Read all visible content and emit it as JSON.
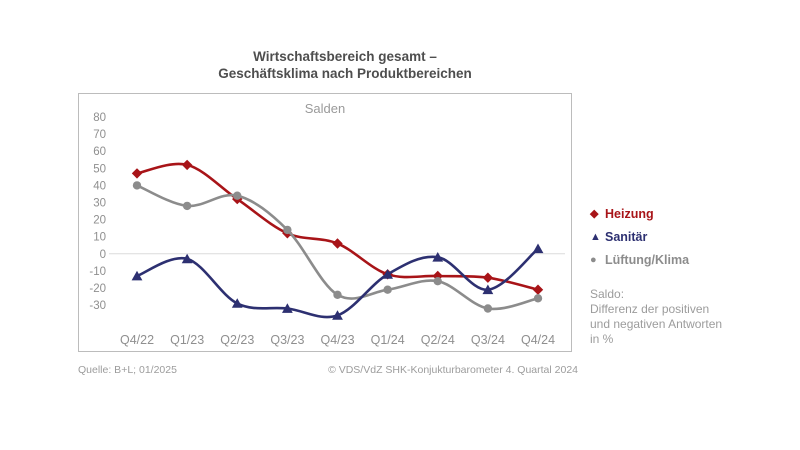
{
  "title": {
    "line1": "Wirtschaftsbereich gesamt –",
    "line2": "Geschäftsklima nach Produktbereichen"
  },
  "chart_data": {
    "type": "line",
    "title": "Salden",
    "categories": [
      "Q4/22",
      "Q1/23",
      "Q2/23",
      "Q3/23",
      "Q4/23",
      "Q1/24",
      "Q2/24",
      "Q3/24",
      "Q4/24"
    ],
    "series": [
      {
        "name": "Heizung",
        "color": "#a81418",
        "marker": "diamond",
        "values": [
          47,
          52,
          32,
          12,
          6,
          -12,
          -13,
          -14,
          -21
        ]
      },
      {
        "name": "Sanitär",
        "color": "#2d3071",
        "marker": "triangle",
        "values": [
          -13,
          -3,
          -29,
          -32,
          -36,
          -12,
          -2,
          -21,
          3
        ]
      },
      {
        "name": "Lüftung/Klima",
        "color": "#8c8c8c",
        "marker": "circle",
        "values": [
          40,
          28,
          34,
          14,
          -24,
          -21,
          -16,
          -32,
          -26
        ]
      }
    ],
    "y_ticks": [
      80,
      70,
      60,
      50,
      40,
      30,
      20,
      10,
      0,
      -10,
      -20,
      -30
    ],
    "ylim": [
      -45,
      90
    ],
    "grid": "zero-line-only",
    "legend_position": "right-outside",
    "smoothed_lines": true
  },
  "note": {
    "lines": [
      "Saldo:",
      "Differenz der positiven",
      "und negativen Antworten",
      "in %"
    ]
  },
  "footer": {
    "left": "Quelle: B+L; 01/2025",
    "right": "© VDS/VdZ SHK-Konjukturbarometer 4. Quartal 2024"
  },
  "colors": {
    "heizung": "#a81418",
    "sanitaer": "#2d3071",
    "lueftung_klima": "#8c8c8c",
    "axis_text": "#8f8f8f",
    "zero_line": "#dcdcdc",
    "title_text": "#4e4e4e"
  }
}
